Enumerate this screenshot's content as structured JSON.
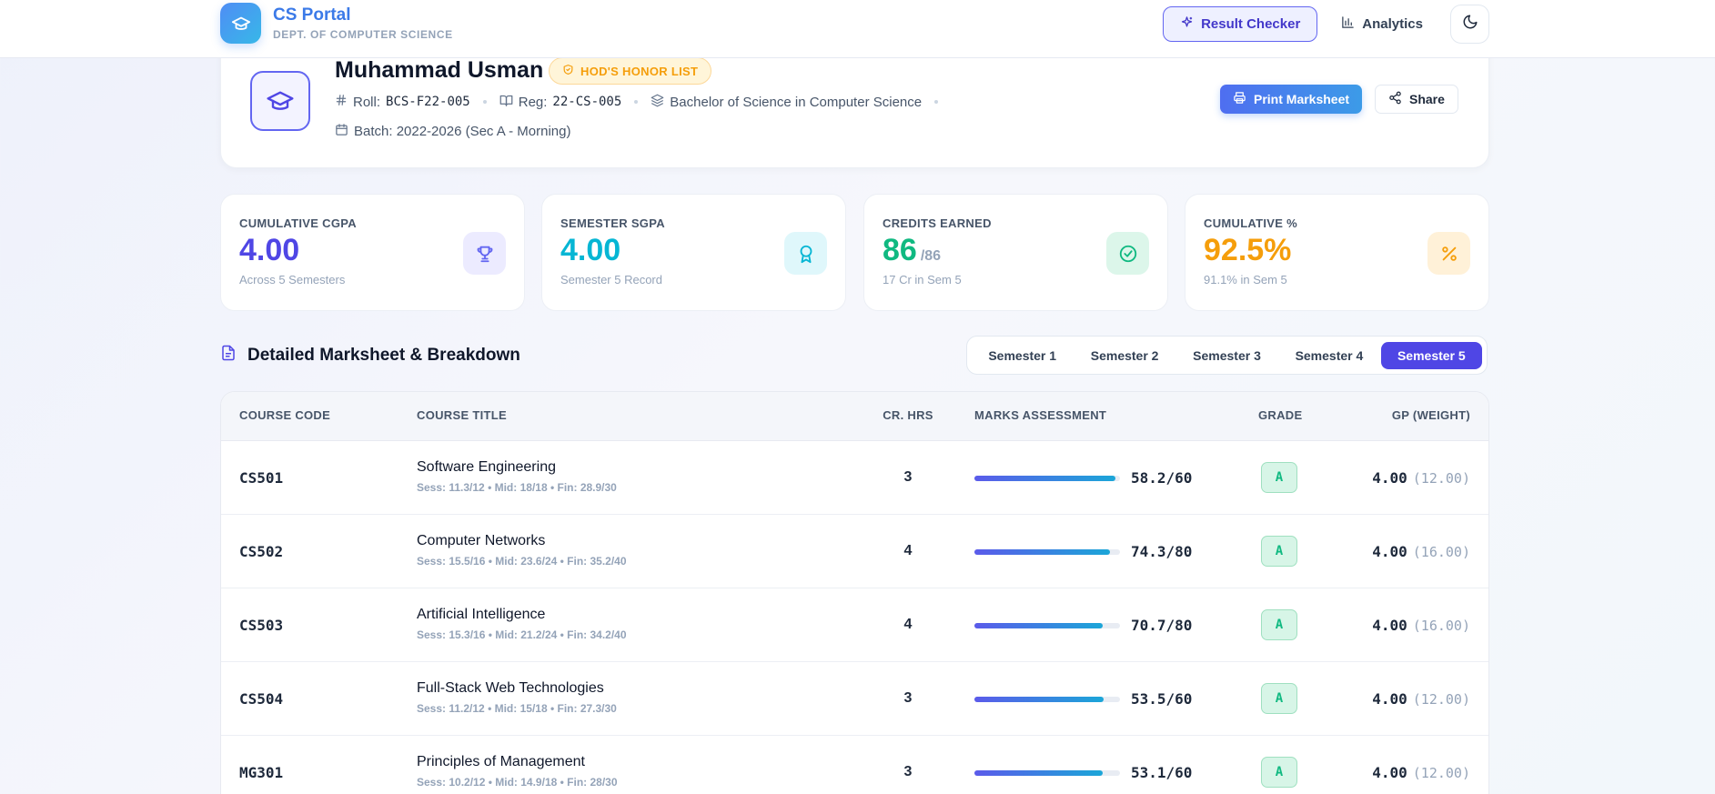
{
  "brand": {
    "title": "CS Portal",
    "subtitle": "DEPT. OF COMPUTER SCIENCE"
  },
  "nav": {
    "result_checker": "Result Checker",
    "analytics": "Analytics"
  },
  "student": {
    "name": "Muhammad Usman",
    "honor_badge": "HOD'S HONOR LIST",
    "roll_label": "Roll:",
    "roll": "BCS-F22-005",
    "reg_label": "Reg:",
    "reg": "22-CS-005",
    "program": "Bachelor of Science in Computer Science",
    "batch": "Batch: 2022-2026 (Sec A - Morning)",
    "print_label": "Print Marksheet",
    "share_label": "Share"
  },
  "stats": [
    {
      "label": "CUMULATIVE CGPA",
      "value": "4.00",
      "of": "",
      "sub": "Across 5 Semesters",
      "color": "#4f46e5",
      "icon": "trophy-icon",
      "icon_bg": "#ecebff"
    },
    {
      "label": "SEMESTER SGPA",
      "value": "4.00",
      "of": "",
      "sub": "Semester 5 Record",
      "color": "#06b6d4",
      "icon": "award-icon",
      "icon_bg": "#dff7fb"
    },
    {
      "label": "CREDITS EARNED",
      "value": "86",
      "of": "/86",
      "sub": "17 Cr in Sem 5",
      "color": "#10b981",
      "icon": "check-circle-icon",
      "icon_bg": "#dcf6ea"
    },
    {
      "label": "CUMULATIVE %",
      "value": "92.5%",
      "of": "",
      "sub": "91.1% in Sem 5",
      "color": "#f59e0b",
      "icon": "percent-icon",
      "icon_bg": "#fff1d8"
    }
  ],
  "section": {
    "title": "Detailed Marksheet & Breakdown"
  },
  "semesters": [
    "Semester 1",
    "Semester 2",
    "Semester 3",
    "Semester 4",
    "Semester 5"
  ],
  "active_semester": 4,
  "table": {
    "headers": {
      "code": "COURSE CODE",
      "title": "COURSE TITLE",
      "cr": "CR. HRS",
      "marks": "MARKS ASSESSMENT",
      "grade": "GRADE",
      "gp": "GP (WEIGHT)"
    },
    "rows": [
      {
        "code": "CS501",
        "title": "Software Engineering",
        "detail": "Sess: 11.3/12 • Mid: 18/18 • Fin: 28.9/30",
        "cr": "3",
        "marks": "58.2/60",
        "pct": 97,
        "grade": "A",
        "gp": "4.00",
        "weight": "(12.00)"
      },
      {
        "code": "CS502",
        "title": "Computer Networks",
        "detail": "Sess: 15.5/16 • Mid: 23.6/24 • Fin: 35.2/40",
        "cr": "4",
        "marks": "74.3/80",
        "pct": 93,
        "grade": "A",
        "gp": "4.00",
        "weight": "(16.00)"
      },
      {
        "code": "CS503",
        "title": "Artificial Intelligence",
        "detail": "Sess: 15.3/16 • Mid: 21.2/24 • Fin: 34.2/40",
        "cr": "4",
        "marks": "70.7/80",
        "pct": 88,
        "grade": "A",
        "gp": "4.00",
        "weight": "(16.00)"
      },
      {
        "code": "CS504",
        "title": "Full-Stack Web Technologies",
        "detail": "Sess: 11.2/12 • Mid: 15/18 • Fin: 27.3/30",
        "cr": "3",
        "marks": "53.5/60",
        "pct": 89,
        "grade": "A",
        "gp": "4.00",
        "weight": "(12.00)"
      },
      {
        "code": "MG301",
        "title": "Principles of Management",
        "detail": "Sess: 10.2/12 • Mid: 14.9/18 • Fin: 28/30",
        "cr": "3",
        "marks": "53.1/60",
        "pct": 88,
        "grade": "A",
        "gp": "4.00",
        "weight": "(12.00)"
      }
    ]
  }
}
